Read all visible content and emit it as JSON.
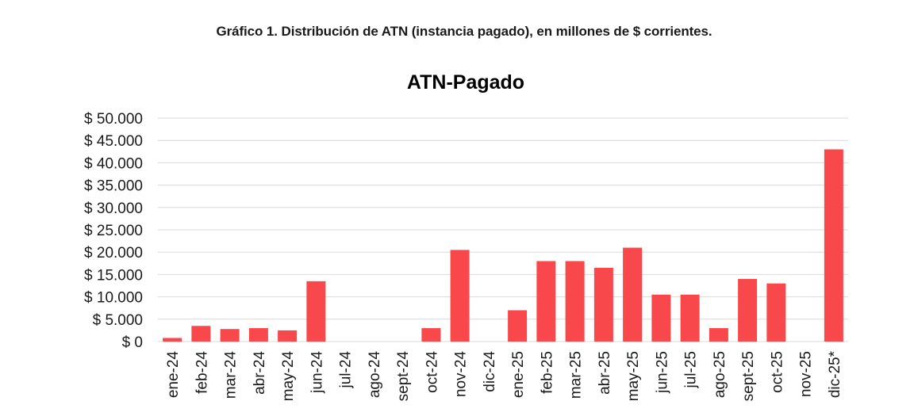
{
  "header": {
    "caption": "Gráfico 1. Distribución de ATN (instancia pagado), en millones de $ corrientes."
  },
  "chart_data": {
    "type": "bar",
    "title": "ATN-Pagado",
    "xlabel": "",
    "ylabel": "",
    "categories": [
      "ene-24",
      "feb-24",
      "mar-24",
      "abr-24",
      "may-24",
      "jun-24",
      "jul-24",
      "ago-24",
      "sept-24",
      "oct-24",
      "nov-24",
      "dic-24",
      "ene-25",
      "feb-25",
      "mar-25",
      "abr-25",
      "may-25",
      "jun-25",
      "jul-25",
      "ago-25",
      "sept-25",
      "oct-25",
      "nov-25",
      "dic-25*"
    ],
    "values": [
      800,
      3500,
      2800,
      3000,
      2500,
      13500,
      0,
      0,
      0,
      3000,
      20500,
      0,
      7000,
      18000,
      18000,
      16500,
      21000,
      10500,
      10500,
      3000,
      14000,
      13000,
      0,
      43000
    ],
    "ylim": [
      0,
      50000
    ],
    "yticks": [
      0,
      5000,
      10000,
      15000,
      20000,
      25000,
      30000,
      35000,
      40000,
      45000,
      50000
    ],
    "ytick_labels": [
      "$ 0",
      "$ 5.000",
      "$ 10.000",
      "$ 15.000",
      "$ 20.000",
      "$ 25.000",
      "$ 30.000",
      "$ 35.000",
      "$ 40.000",
      "$ 45.000",
      "$ 50.000"
    ],
    "bar_color": "#f8484b",
    "grid": true,
    "legend": "none"
  }
}
